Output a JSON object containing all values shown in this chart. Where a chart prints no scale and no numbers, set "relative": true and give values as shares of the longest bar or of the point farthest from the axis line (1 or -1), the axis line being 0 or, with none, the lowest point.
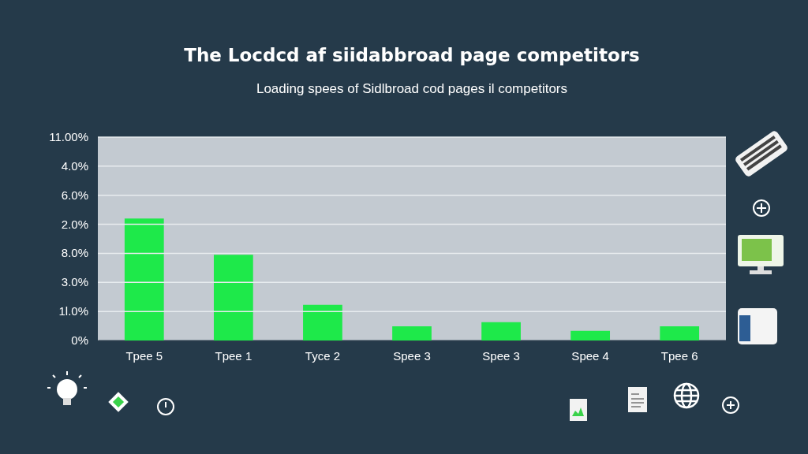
{
  "chart_data": {
    "type": "bar",
    "title": "The Locdcd af siidabbroad page competitors",
    "subtitle": "Loading spees of Sidlbroad cod pages il competitors",
    "categories": [
      "Tpee 5",
      "Tpee 1",
      "Tyce 2",
      "Spee 3",
      "Spee 3",
      "Spee 4",
      "Tpee 6"
    ],
    "values": [
      1,
      0.702,
      0.293,
      0.117,
      0.15,
      0.079,
      0.117
    ],
    "color": "#1ee94a",
    "relative": true,
    "annotations": [
      "11.00%",
      "4.0%",
      "6.0%",
      "2.0%",
      "8.0%",
      "3.0%",
      "1l.0%",
      "0%"
    ],
    "grid": true
  }
}
